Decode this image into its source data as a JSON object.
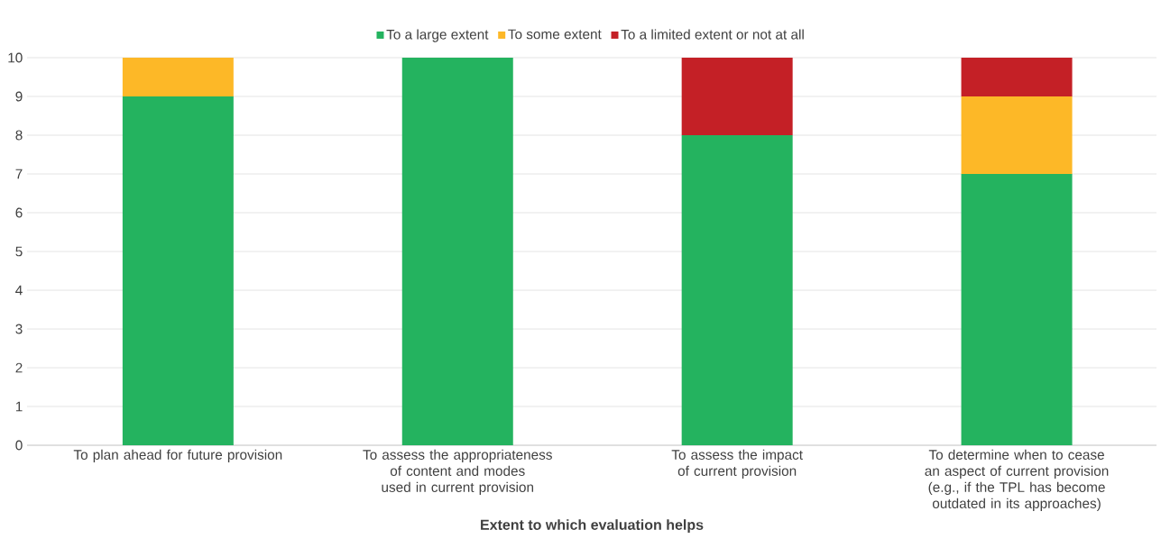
{
  "chart_data": {
    "type": "bar",
    "stacked": true,
    "xlabel": "Extent to which evaluation helps",
    "categories": [
      "To plan ahead for future provision",
      "To assess the appropriateness of content and modes used in current provision",
      "To assess the impact of current provision",
      "To determine when to cease an aspect of current provision (e.g., if the TPL has become outdated in its approaches)"
    ],
    "series": [
      {
        "name": "To a large extent",
        "color": "#24b35f",
        "values": [
          9,
          10,
          8,
          7
        ]
      },
      {
        "name": "To some extent",
        "color": "#fdb827",
        "values": [
          1,
          0,
          0,
          2
        ]
      },
      {
        "name": "To a limited extent or not at all",
        "color": "#c42026",
        "values": [
          0,
          0,
          2,
          1
        ]
      }
    ],
    "ylim": [
      0,
      10
    ],
    "yticks": [
      0,
      1,
      2,
      3,
      4,
      5,
      6,
      7,
      8,
      9,
      10
    ],
    "grid": "y",
    "legend": "top"
  }
}
